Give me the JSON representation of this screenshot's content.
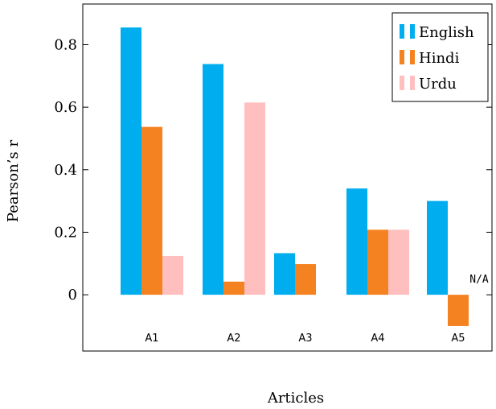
{
  "chart_data": {
    "type": "bar",
    "title": "",
    "xlabel": "Articles",
    "ylabel": "Pearson’s r",
    "categories": [
      "A1",
      "A2",
      "A3",
      "A4",
      "A5"
    ],
    "series": [
      {
        "name": "English",
        "color": "#00aeef",
        "values": [
          0.855,
          0.738,
          0.133,
          0.34,
          0.3
        ]
      },
      {
        "name": "Hindi",
        "color": "#f58220",
        "values": [
          0.537,
          0.042,
          0.098,
          0.208,
          -0.1
        ]
      },
      {
        "name": "Urdu",
        "color": "#ffbfbf",
        "values": [
          0.124,
          0.615,
          null,
          0.208,
          null
        ]
      }
    ],
    "ylim": [
      -0.18,
      0.93
    ],
    "yticks": [
      0,
      0.2,
      0.4,
      0.6,
      0.8
    ],
    "ytick_labels": [
      "0",
      "0.2",
      "0.4",
      "0.6",
      "0.8"
    ],
    "annotations": [
      {
        "text": "N/A",
        "category": "A5",
        "series": "Urdu"
      }
    ],
    "grid": false,
    "legend_position": "top-right"
  }
}
